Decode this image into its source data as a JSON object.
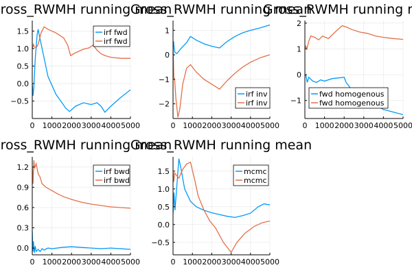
{
  "chart_data": [
    {
      "type": "line",
      "title": "Gross_RWMH running mean",
      "xlim": [
        0,
        5000
      ],
      "ylim": [
        -1.0,
        1.8
      ],
      "xticks": [
        0,
        1000,
        2000,
        3000,
        4000,
        5000
      ],
      "yticks": [
        -0.5,
        0.0,
        0.5,
        1.0,
        1.5
      ],
      "grid": true,
      "legend_position": "top-right",
      "series": [
        {
          "name": "irf fwd",
          "color": "#009AFA",
          "x": [
            0,
            40,
            80,
            150,
            250,
            300,
            350,
            500,
            800,
            1200,
            1700,
            1900,
            2200,
            2600,
            3000,
            3300,
            3500,
            3700,
            4000,
            4500,
            5000
          ],
          "y": [
            0.0,
            -0.35,
            -0.1,
            0.7,
            1.4,
            1.55,
            1.4,
            1.0,
            0.2,
            -0.3,
            -0.7,
            -0.8,
            -0.65,
            -0.55,
            -0.6,
            -0.55,
            -0.65,
            -0.82,
            -0.65,
            -0.4,
            -0.18
          ]
        },
        {
          "name": "irf fwd",
          "color": "#E36F47",
          "x": [
            0,
            60,
            100,
            200,
            300,
            450,
            600,
            800,
            1200,
            1600,
            1800,
            1950,
            2200,
            2600,
            2900,
            3100,
            3300,
            3500,
            3700,
            4000,
            4500,
            5000
          ],
          "y": [
            1.0,
            1.12,
            1.05,
            1.02,
            1.12,
            1.45,
            1.62,
            1.55,
            1.45,
            1.3,
            1.1,
            0.8,
            0.88,
            0.98,
            1.02,
            1.1,
            0.95,
            0.85,
            0.8,
            0.75,
            0.72,
            0.72
          ]
        }
      ]
    },
    {
      "type": "line",
      "title": "Gross_RWMH running mean",
      "xlim": [
        0,
        5000
      ],
      "ylim": [
        -2.6,
        1.4
      ],
      "xticks": [
        0,
        1000,
        2000,
        3000,
        4000,
        5000
      ],
      "yticks": [
        -2,
        -1,
        0,
        1
      ],
      "grid": true,
      "legend_position": "bottom-right",
      "series": [
        {
          "name": "irf inv",
          "color": "#009AFA",
          "x": [
            0,
            30,
            60,
            100,
            200,
            400,
            700,
            900,
            1200,
            1600,
            2000,
            2400,
            2800,
            3200,
            3600,
            4000,
            4500,
            5000
          ],
          "y": [
            0.3,
            0.55,
            0.25,
            0.1,
            0.05,
            0.25,
            0.5,
            0.75,
            0.6,
            0.45,
            0.35,
            0.28,
            0.55,
            0.75,
            0.9,
            1.0,
            1.1,
            1.22
          ]
        },
        {
          "name": "irf inv",
          "color": "#E36F47",
          "x": [
            0,
            40,
            80,
            150,
            250,
            350,
            500,
            700,
            900,
            1200,
            1600,
            2000,
            2400,
            2800,
            3200,
            3600,
            4000,
            4500,
            5000
          ],
          "y": [
            0.5,
            -0.9,
            -1.0,
            -1.8,
            -2.55,
            -2.2,
            -1.2,
            -0.55,
            -0.4,
            -0.7,
            -1.0,
            -1.2,
            -1.4,
            -1.05,
            -0.75,
            -0.5,
            -0.3,
            -0.12,
            0.0
          ]
        }
      ]
    },
    {
      "type": "line",
      "title": "Gross_RWMH running mean",
      "xlim": [
        0,
        5000
      ],
      "ylim": [
        -1.7,
        2.1
      ],
      "xticks": [
        0,
        1000,
        2000,
        3000,
        4000,
        5000
      ],
      "yticks": [
        -1,
        0,
        1,
        2
      ],
      "grid": true,
      "legend_position": "bottom-right",
      "series": [
        {
          "name": "fwd homogenous",
          "color": "#009AFA",
          "x": [
            0,
            60,
            120,
            200,
            400,
            600,
            800,
            1000,
            1400,
            2000,
            2100,
            2400,
            2800,
            3200,
            3600,
            4000,
            4500,
            5000
          ],
          "y": [
            0.0,
            -0.05,
            -0.3,
            -0.1,
            -0.25,
            -0.3,
            -0.2,
            -0.25,
            -0.15,
            -0.1,
            -0.3,
            -0.6,
            -0.9,
            -1.1,
            -1.2,
            -1.35,
            -1.45,
            -1.55
          ]
        },
        {
          "name": "fwd homogenous",
          "color": "#E36F47",
          "x": [
            0,
            50,
            100,
            200,
            300,
            500,
            700,
            900,
            1200,
            1600,
            1900,
            2100,
            2400,
            2800,
            3200,
            3600,
            4000,
            4500,
            5000
          ],
          "y": [
            1.0,
            1.1,
            1.0,
            1.3,
            1.5,
            1.45,
            1.35,
            1.5,
            1.4,
            1.7,
            1.9,
            1.85,
            1.75,
            1.65,
            1.6,
            1.5,
            1.45,
            1.4,
            1.37
          ]
        }
      ]
    },
    {
      "type": "line",
      "title": "Gross_RWMH running mean",
      "xlim": [
        0,
        5000
      ],
      "ylim": [
        -0.1,
        1.35
      ],
      "xticks": [
        0,
        1000,
        2000,
        3000,
        4000,
        5000
      ],
      "yticks": [
        0.0,
        0.3,
        0.6,
        0.9,
        1.2
      ],
      "grid": true,
      "legend_position": "top-right",
      "series": [
        {
          "name": "irf bwd",
          "color": "#009AFA",
          "x": [
            0,
            30,
            60,
            100,
            150,
            200,
            300,
            400,
            500,
            600,
            800,
            1000,
            1500,
            2000,
            2500,
            3000,
            3500,
            4000,
            4500,
            5000
          ],
          "y": [
            0.25,
            -0.05,
            0.1,
            -0.07,
            0.03,
            -0.05,
            -0.02,
            -0.05,
            -0.01,
            -0.03,
            0.0,
            -0.01,
            0.01,
            0.02,
            0.01,
            0.0,
            -0.01,
            0.0,
            -0.01,
            -0.02
          ]
        },
        {
          "name": "irf bwd",
          "color": "#E36F47",
          "x": [
            0,
            40,
            80,
            120,
            200,
            300,
            400,
            500,
            700,
            1000,
            1300,
            1600,
            2000,
            2500,
            3000,
            3500,
            4000,
            4500,
            5000
          ],
          "y": [
            1.2,
            0.95,
            1.3,
            1.18,
            1.25,
            1.1,
            1.05,
            0.95,
            0.9,
            0.85,
            0.8,
            0.76,
            0.72,
            0.68,
            0.65,
            0.63,
            0.61,
            0.6,
            0.59
          ]
        }
      ]
    },
    {
      "type": "line",
      "title": "Gross_RWMH running mean",
      "xlim": [
        0,
        5000
      ],
      "ylim": [
        -0.85,
        1.9
      ],
      "xticks": [
        0,
        1000,
        2000,
        3000,
        4000,
        5000
      ],
      "yticks": [
        -0.5,
        0.0,
        0.5,
        1.0,
        1.5
      ],
      "grid": true,
      "legend_position": "top-right",
      "series": [
        {
          "name": "mcmc",
          "color": "#009AFA",
          "x": [
            0,
            50,
            100,
            200,
            300,
            400,
            600,
            900,
            1200,
            1600,
            2000,
            2400,
            2800,
            3200,
            3600,
            4000,
            4400,
            4700,
            5000
          ],
          "y": [
            0.3,
            0.9,
            0.4,
            1.1,
            1.85,
            1.6,
            1.0,
            0.65,
            0.5,
            0.4,
            0.33,
            0.28,
            0.23,
            0.2,
            0.25,
            0.32,
            0.5,
            0.58,
            0.55
          ]
        },
        {
          "name": "mcmc",
          "color": "#E36F47",
          "x": [
            0,
            40,
            80,
            150,
            300,
            500,
            700,
            900,
            1100,
            1300,
            1600,
            1900,
            2200,
            2600,
            3000,
            3300,
            3700,
            4200,
            4600,
            5000
          ],
          "y": [
            1.5,
            1.2,
            1.45,
            1.4,
            1.3,
            1.55,
            1.7,
            1.75,
            1.3,
            0.8,
            0.4,
            0.1,
            -0.1,
            -0.5,
            -0.78,
            -0.5,
            -0.25,
            -0.05,
            0.05,
            0.1
          ]
        }
      ]
    }
  ]
}
